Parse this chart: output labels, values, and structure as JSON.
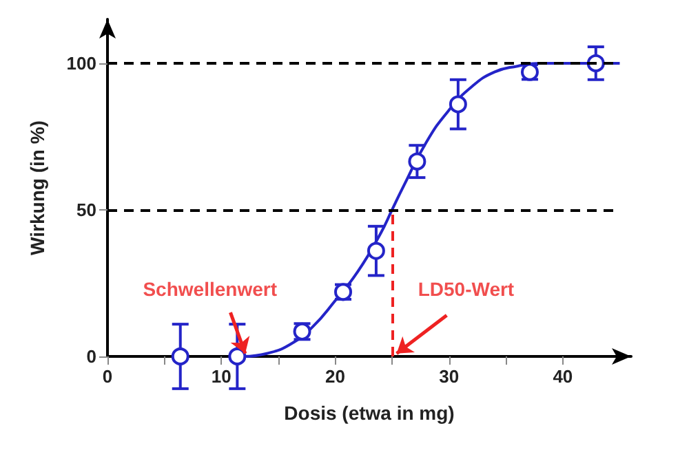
{
  "chart_data": {
    "type": "scatter",
    "xlabel": "Dosis (etwa in mg)",
    "ylabel": "Wirkung (in %)",
    "xlim": [
      0,
      46
    ],
    "xticks": [
      0,
      {
        "value": 5,
        "label": null
      },
      10,
      {
        "value": 15,
        "label": null
      },
      20,
      {
        "value": 25,
        "label": null
      },
      30,
      {
        "value": 35,
        "label": null
      },
      40
    ],
    "ylim": [
      0,
      115
    ],
    "yticks": [
      0,
      50,
      100
    ],
    "grid": false,
    "marker": "circle",
    "series": [
      {
        "type": "scatter",
        "color": "#2424c8",
        "x": [
          6.4,
          11.4,
          17.1,
          20.7,
          23.6,
          27.2,
          30.8,
          37.1,
          42.9
        ],
        "values": [
          0,
          0,
          8.5,
          22,
          36,
          66.5,
          86,
          97,
          100
        ],
        "errors": [
          11,
          11,
          2.7,
          2.5,
          8.4,
          5.5,
          8.4,
          2.5,
          5.6
        ]
      },
      {
        "type": "line",
        "color": "#2424c8",
        "marker": "none",
        "line_style": "solid",
        "x": [
          12,
          14,
          16,
          18,
          20,
          22,
          24,
          25,
          26,
          28,
          30,
          32,
          34,
          36,
          38,
          45
        ],
        "values": [
          0,
          1,
          4,
          10,
          19,
          29,
          42,
          50,
          58,
          73,
          84,
          92,
          97,
          99,
          100,
          100
        ]
      }
    ],
    "ref_lines": [
      {
        "axis": "y",
        "value": 100,
        "color": "#000000",
        "line_style": "dashed"
      },
      {
        "axis": "y",
        "value": 50,
        "color": "#000000",
        "line_style": "dashed"
      },
      {
        "axis": "x",
        "value": 25,
        "color": "#ee2222",
        "line_style": "dashed"
      }
    ],
    "annotations": [
      {
        "text": "Schwellenwert",
        "x": 12,
        "y": 0
      },
      {
        "text": "LD50-Wert",
        "x": 25,
        "y": 0
      }
    ]
  }
}
